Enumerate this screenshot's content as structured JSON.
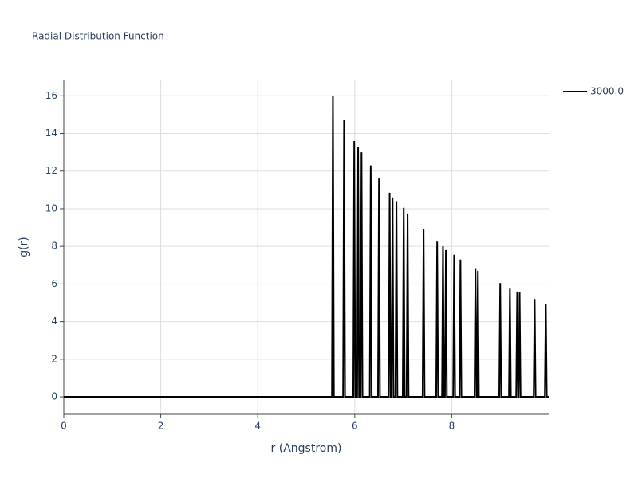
{
  "chart_data": {
    "type": "line",
    "title": "Radial Distribution Function",
    "x_label": "r (Angstrom)",
    "y_label": "g(r)",
    "xlim": [
      0,
      10
    ],
    "ylim": [
      -0.93,
      16.86
    ],
    "xticks": [
      0,
      2,
      4,
      6,
      8
    ],
    "yticks": [
      0,
      2,
      4,
      6,
      8,
      10,
      12,
      14,
      16
    ],
    "grid": true,
    "legend": "top-right",
    "x": [
      0,
      5.53,
      5.55,
      5.57,
      5.76,
      5.78,
      5.8,
      5.97,
      5.99,
      6.01,
      6.05,
      6.07,
      6.09,
      6.12,
      6.14,
      6.16,
      6.31,
      6.33,
      6.35,
      6.48,
      6.5,
      6.52,
      6.7,
      6.72,
      6.74,
      6.76,
      6.78,
      6.8,
      6.84,
      6.86,
      6.88,
      6.99,
      7.01,
      7.03,
      7.07,
      7.09,
      7.11,
      7.4,
      7.42,
      7.44,
      7.68,
      7.7,
      7.72,
      7.8,
      7.82,
      7.84,
      7.86,
      7.88,
      7.9,
      8.03,
      8.05,
      8.07,
      8.16,
      8.18,
      8.2,
      8.47,
      8.49,
      8.51,
      8.52,
      8.54,
      8.56,
      8.98,
      9,
      9.02,
      9.18,
      9.2,
      9.22,
      9.33,
      9.35,
      9.37,
      9.38,
      9.4,
      9.42,
      9.69,
      9.71,
      9.73,
      9.92,
      9.94,
      9.96,
      10
    ],
    "series": [
      {
        "name": "3000.0",
        "color": "#000000",
        "values": [
          0,
          0,
          16,
          0,
          0,
          14.7,
          0,
          0,
          13.6,
          0,
          0,
          13.3,
          0,
          0,
          13,
          0,
          0,
          12.3,
          0,
          0,
          11.6,
          0,
          0,
          10.85,
          0,
          0,
          10.6,
          0,
          0,
          10.4,
          0,
          0,
          10.05,
          0,
          0,
          9.75,
          0,
          0,
          8.9,
          0,
          0,
          8.25,
          0,
          0,
          8,
          0,
          0,
          7.8,
          0,
          0,
          7.55,
          0,
          0,
          7.3,
          0,
          0,
          6.8,
          0,
          0,
          6.7,
          0,
          0,
          6.05,
          0,
          0,
          5.75,
          0,
          0,
          5.6,
          0,
          0,
          5.55,
          0,
          0,
          5.2,
          0,
          0,
          4.95,
          0,
          0
        ]
      }
    ]
  }
}
